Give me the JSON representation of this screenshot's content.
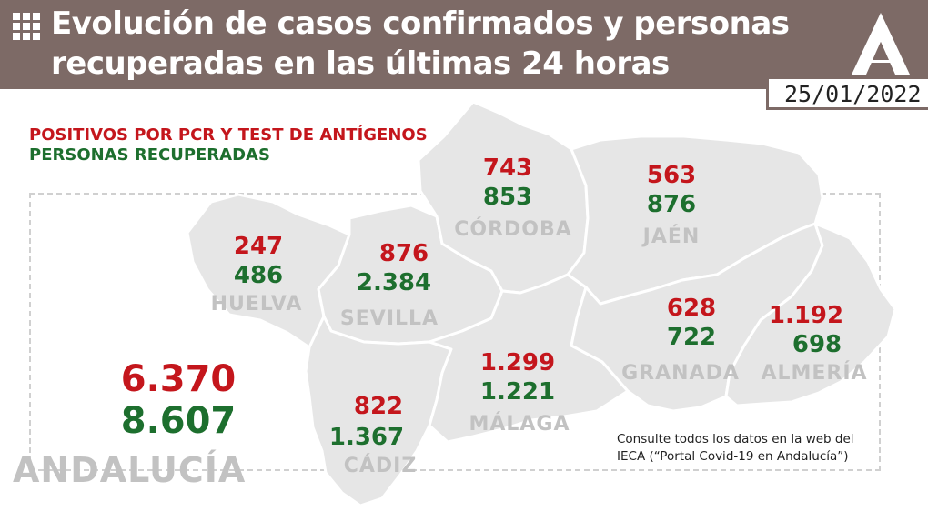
{
  "header": {
    "title_line1": "Evolución de casos confirmados y personas",
    "title_line2": "recuperadas en las últimas 24 horas",
    "date": "25/01/2022"
  },
  "legend": {
    "positives": "POSITIVOS POR PCR Y TEST DE ANTÍGENOS",
    "recovered": "PERSONAS RECUPERADAS"
  },
  "provinces": {
    "huelva": {
      "name": "HUELVA",
      "positives": "247",
      "recovered": "486"
    },
    "sevilla": {
      "name": "SEVILLA",
      "positives": "876",
      "recovered": "2.384"
    },
    "cordoba": {
      "name": "CÓRDOBA",
      "positives": "743",
      "recovered": "853"
    },
    "jaen": {
      "name": "JAÉN",
      "positives": "563",
      "recovered": "876"
    },
    "cadiz": {
      "name": "CÁDIZ",
      "positives": "822",
      "recovered": "1.367"
    },
    "malaga": {
      "name": "MÁLAGA",
      "positives": "1.299",
      "recovered": "1.221"
    },
    "granada": {
      "name": "GRANADA",
      "positives": "628",
      "recovered": "722"
    },
    "almeria": {
      "name": "ALMERÍA",
      "positives": "1.192",
      "recovered": "698"
    }
  },
  "total": {
    "name": "ANDALUCÍA",
    "positives": "6.370",
    "recovered": "8.607"
  },
  "note": {
    "line1": "Consulte todos los datos en la web del",
    "line2": "IECA (“Portal Covid-19 en Andalucía”)"
  },
  "colors": {
    "header_bg": "#7d6a66",
    "positives": "#c4161c",
    "recovered": "#1d6f2e",
    "map_fill": "#e6e6e6",
    "province_label": "#c2c2c2"
  },
  "icons": {
    "menu": "grid-icon",
    "logo": "junta-andalucia-logo"
  }
}
